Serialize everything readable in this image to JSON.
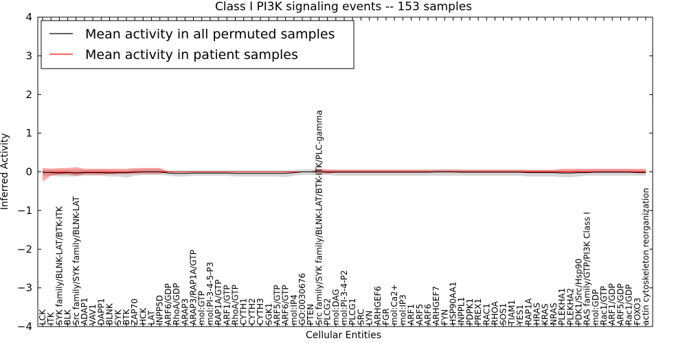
{
  "chart_data": {
    "type": "line",
    "title": "Class I PI3K signaling events -- 153 samples",
    "xlabel": "Cellular Entities",
    "ylabel": "Inferred Activity",
    "ylim": [
      -4,
      4
    ],
    "yticks": [
      4,
      3,
      2,
      1,
      0,
      -1,
      -2,
      -3,
      -4
    ],
    "ytick_labels": [
      "4",
      "3",
      "2",
      "1",
      "0",
      "−1",
      "−2",
      "−3",
      "−4"
    ],
    "legend": {
      "position": "top-left",
      "entries": [
        {
          "label": "Mean activity in all permuted samples",
          "color": "#000000"
        },
        {
          "label": "Mean activity in patient samples",
          "color": "#ff0000"
        }
      ]
    },
    "categories": [
      "LCK",
      "ITK",
      "SYK family/BLNK-LAT/BTK-ITK",
      "BLK",
      "Src family/SYK family/BLNK-LAT",
      "ADAP1",
      "VAV1",
      "DAPP1",
      "BLNK",
      "SYK",
      "BTK",
      "ZAP70",
      "HCK",
      "LAT",
      "INPP5D",
      "ARF6/GDP",
      "RhoA/GDP",
      "ARAP3",
      "ARAP3/RAP1A/GTP",
      "mol:GTP",
      "mol:PI-3-4-5-P3",
      "RAP1A/GTP",
      "ARF1/GTP",
      "RhoA/GTP",
      "CYTH1",
      "CYTH2",
      "CYTH3",
      "SGK1",
      "ARF5/GTP",
      "ARF6/GTP",
      "mol:IP4",
      "GO:0030676",
      "PTEN",
      "Src family/SYK family/BLNK-LAT/BTK-ITK/PLC-gamma",
      "PLCG2",
      "mol:DAG",
      "mol:PI-3-4-P2",
      "PLCG1",
      "SRC",
      "LYN",
      "ARHGEF6",
      "FGR",
      "mol:Ca2+",
      "mol:IP3",
      "ARF1",
      "ARF5",
      "ARF6",
      "ARHGEF7",
      "FYN",
      "HSP90AA1",
      "INPPL1",
      "PDPK1",
      "PREX1",
      "RAC1",
      "RHOA",
      "SOS1",
      "TIAM1",
      "YES1",
      "RAP1A",
      "HRAS",
      "KRAS",
      "NRAS",
      "PLEKHA1",
      "PLEKHA2",
      "PDK1/Src/Hsp90",
      "RAS family/GTP/PI3K Class I",
      "mol:GDP",
      "Rac1/GTP",
      "ARF1/GDP",
      "ARF5/GDP",
      "Rac1/GDP",
      "FOXO3",
      "actin cytoskeleton reorganization"
    ],
    "series": [
      {
        "name": "Mean activity in all permuted samples",
        "color": "#000000",
        "values": [
          -0.01,
          -0.02,
          -0.03,
          -0.02,
          -0.03,
          -0.02,
          -0.02,
          -0.02,
          -0.03,
          -0.02,
          -0.02,
          -0.01,
          0.0,
          0.0,
          0.0,
          -0.03,
          -0.04,
          -0.04,
          -0.03,
          -0.03,
          -0.03,
          -0.03,
          -0.03,
          -0.04,
          -0.04,
          -0.04,
          -0.04,
          -0.04,
          -0.04,
          -0.04,
          -0.02,
          0.0,
          0.0,
          0.0,
          -0.01,
          -0.01,
          -0.01,
          -0.01,
          -0.01,
          -0.01,
          -0.01,
          -0.01,
          -0.01,
          -0.01,
          -0.01,
          -0.01,
          -0.01,
          0.0,
          0.0,
          0.0,
          -0.01,
          -0.01,
          -0.01,
          -0.01,
          -0.01,
          -0.01,
          -0.01,
          -0.01,
          -0.02,
          -0.02,
          -0.02,
          -0.02,
          -0.03,
          -0.03,
          -0.02,
          -0.02,
          -0.01,
          -0.01,
          -0.01,
          -0.01,
          -0.01,
          -0.02,
          -0.02
        ],
        "lower": [
          -0.1,
          -0.1,
          -0.12,
          -0.12,
          -0.12,
          -0.1,
          -0.1,
          -0.1,
          -0.12,
          -0.12,
          -0.15,
          -0.1,
          -0.08,
          -0.08,
          -0.08,
          -0.1,
          -0.12,
          -0.12,
          -0.1,
          -0.1,
          -0.1,
          -0.1,
          -0.1,
          -0.12,
          -0.12,
          -0.12,
          -0.12,
          -0.12,
          -0.12,
          -0.14,
          -0.1,
          -0.08,
          -0.08,
          -0.08,
          -0.08,
          -0.1,
          -0.1,
          -0.1,
          -0.1,
          -0.1,
          -0.1,
          -0.1,
          -0.1,
          -0.1,
          -0.1,
          -0.1,
          -0.1,
          -0.1,
          -0.1,
          -0.1,
          -0.1,
          -0.1,
          -0.1,
          -0.1,
          -0.1,
          -0.1,
          -0.1,
          -0.1,
          -0.12,
          -0.12,
          -0.12,
          -0.12,
          -0.14,
          -0.14,
          -0.12,
          -0.1,
          -0.1,
          -0.1,
          -0.1,
          -0.1,
          -0.1,
          -0.1,
          -0.1
        ],
        "upper": [
          0.05,
          0.05,
          0.05,
          0.05,
          0.05,
          0.05,
          0.05,
          0.05,
          0.04,
          0.04,
          0.04,
          0.06,
          0.07,
          0.07,
          0.07,
          0.04,
          0.04,
          0.04,
          0.04,
          0.04,
          0.04,
          0.04,
          0.04,
          0.04,
          0.04,
          0.04,
          0.04,
          0.04,
          0.04,
          0.04,
          0.05,
          0.07,
          0.07,
          0.07,
          0.06,
          0.06,
          0.06,
          0.06,
          0.06,
          0.06,
          0.06,
          0.06,
          0.06,
          0.06,
          0.06,
          0.06,
          0.06,
          0.07,
          0.07,
          0.07,
          0.06,
          0.06,
          0.06,
          0.06,
          0.06,
          0.06,
          0.06,
          0.06,
          0.05,
          0.05,
          0.05,
          0.05,
          0.04,
          0.04,
          0.05,
          0.05,
          0.06,
          0.06,
          0.06,
          0.06,
          0.06,
          0.05,
          0.05
        ]
      },
      {
        "name": "Mean activity in patient samples",
        "color": "#ff0000",
        "values": [
          -0.02,
          -0.01,
          -0.01,
          -0.01,
          -0.02,
          -0.01,
          -0.01,
          -0.01,
          -0.01,
          -0.01,
          -0.01,
          0.0,
          0.0,
          0.0,
          0.0,
          0.0,
          0.0,
          0.0,
          0.0,
          0.0,
          0.0,
          0.0,
          0.0,
          0.0,
          0.0,
          0.0,
          0.0,
          0.0,
          0.0,
          0.0,
          0.0,
          0.0,
          0.0,
          0.0,
          0.0,
          0.0,
          0.0,
          0.0,
          0.0,
          0.0,
          0.0,
          0.0,
          0.0,
          0.0,
          0.0,
          0.0,
          0.0,
          0.0,
          0.0,
          0.0,
          0.0,
          0.0,
          0.0,
          0.0,
          0.0,
          0.0,
          0.0,
          0.0,
          0.0,
          0.0,
          0.0,
          0.0,
          0.0,
          0.0,
          0.0,
          0.0,
          0.0,
          0.0,
          0.0,
          0.0,
          0.0,
          0.0,
          0.0
        ],
        "lower": [
          -0.25,
          -0.1,
          -0.07,
          -0.07,
          -0.1,
          -0.07,
          -0.07,
          -0.07,
          -0.06,
          -0.06,
          -0.06,
          -0.05,
          -0.05,
          -0.05,
          -0.05,
          -0.01,
          -0.01,
          -0.01,
          -0.01,
          -0.01,
          -0.01,
          -0.01,
          -0.01,
          -0.01,
          -0.01,
          -0.01,
          -0.01,
          -0.01,
          -0.01,
          -0.01,
          -0.01,
          -0.01,
          -0.01,
          -0.03,
          -0.05,
          -0.02,
          -0.02,
          -0.02,
          -0.02,
          -0.02,
          -0.02,
          -0.02,
          -0.02,
          -0.02,
          -0.02,
          -0.02,
          -0.02,
          -0.02,
          -0.02,
          -0.02,
          -0.02,
          -0.02,
          -0.02,
          -0.02,
          -0.02,
          -0.02,
          -0.02,
          -0.02,
          -0.02,
          -0.02,
          -0.02,
          -0.02,
          -0.03,
          -0.03,
          -0.03,
          -0.02,
          -0.02,
          -0.02,
          -0.02,
          -0.02,
          -0.02,
          -0.02,
          -0.02
        ],
        "upper": [
          0.1,
          0.08,
          0.1,
          0.1,
          0.12,
          0.08,
          0.08,
          0.08,
          0.08,
          0.08,
          0.08,
          0.1,
          0.1,
          0.1,
          0.1,
          0.01,
          0.01,
          0.01,
          0.01,
          0.01,
          0.01,
          0.01,
          0.01,
          0.01,
          0.01,
          0.01,
          0.01,
          0.01,
          0.01,
          0.01,
          0.01,
          0.01,
          0.01,
          0.08,
          0.06,
          0.05,
          0.05,
          0.05,
          0.05,
          0.05,
          0.05,
          0.05,
          0.05,
          0.05,
          0.05,
          0.05,
          0.05,
          0.05,
          0.05,
          0.05,
          0.05,
          0.05,
          0.05,
          0.05,
          0.05,
          0.05,
          0.05,
          0.05,
          0.05,
          0.05,
          0.05,
          0.05,
          0.08,
          0.08,
          0.08,
          0.08,
          0.08,
          0.08,
          0.08,
          0.08,
          0.08,
          0.08,
          0.08
        ]
      }
    ]
  }
}
